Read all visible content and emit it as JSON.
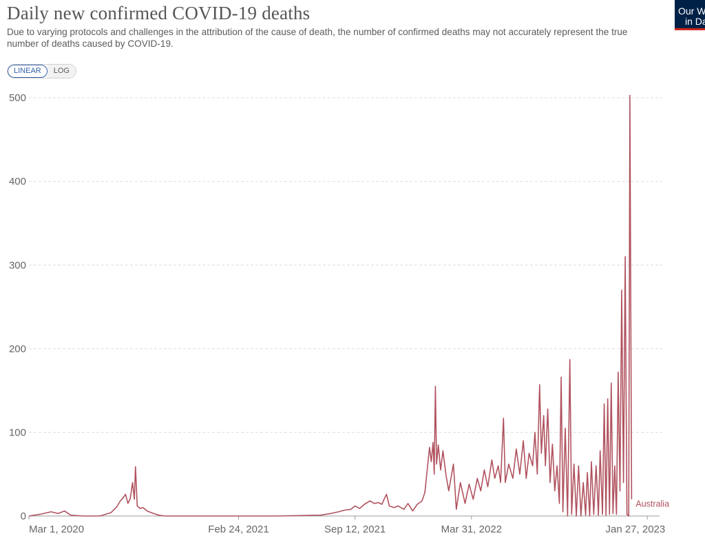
{
  "header": {
    "title": "Daily new confirmed COVID-19 deaths",
    "subtitle": "Due to varying protocols and challenges in the attribution of the cause of death, the number of confirmed deaths may not accurately represent the true number of deaths caused by COVID-19.",
    "logo_line1": "Our World",
    "logo_line2": "in Data"
  },
  "controls": {
    "linear_label": "LINEAR",
    "log_label": "LOG",
    "selected": "LINEAR"
  },
  "colors": {
    "series": "#b0525e",
    "grid": "#dddddd",
    "axis_text": "#666666",
    "logo_bg": "#002147",
    "logo_bar": "#ce261e",
    "accent": "#3360a9"
  },
  "chart_data": {
    "type": "line",
    "title": "Daily new confirmed COVID-19 deaths",
    "xlabel": "",
    "ylabel": "",
    "x_ticks": [
      "Mar 1, 2020",
      "Feb 24, 2021",
      "Sep 12, 2021",
      "Mar 31, 2022",
      "Jan 27, 2023"
    ],
    "y_ticks": [
      0,
      100,
      200,
      300,
      400,
      500
    ],
    "xlim": [
      "2020-03-01",
      "2023-02-17"
    ],
    "ylim": [
      0,
      510
    ],
    "grid": true,
    "series": [
      {
        "name": "Australia",
        "points": [
          [
            "2020-03-01",
            0
          ],
          [
            "2020-03-20",
            2
          ],
          [
            "2020-04-08",
            5
          ],
          [
            "2020-04-20",
            3
          ],
          [
            "2020-05-01",
            6
          ],
          [
            "2020-05-12",
            1
          ],
          [
            "2020-06-01",
            0
          ],
          [
            "2020-07-01",
            0
          ],
          [
            "2020-07-20",
            4
          ],
          [
            "2020-07-30",
            11
          ],
          [
            "2020-08-05",
            18
          ],
          [
            "2020-08-10",
            22
          ],
          [
            "2020-08-14",
            26
          ],
          [
            "2020-08-18",
            15
          ],
          [
            "2020-08-22",
            21
          ],
          [
            "2020-08-26",
            40
          ],
          [
            "2020-08-29",
            20
          ],
          [
            "2020-08-31",
            59
          ],
          [
            "2020-09-03",
            12
          ],
          [
            "2020-09-08",
            9
          ],
          [
            "2020-09-13",
            10
          ],
          [
            "2020-09-20",
            6
          ],
          [
            "2020-10-01",
            3
          ],
          [
            "2020-10-10",
            1
          ],
          [
            "2020-10-20",
            0
          ],
          [
            "2021-01-01",
            0
          ],
          [
            "2021-05-01",
            0
          ],
          [
            "2021-07-15",
            1
          ],
          [
            "2021-08-01",
            3
          ],
          [
            "2021-08-15",
            5
          ],
          [
            "2021-08-25",
            7
          ],
          [
            "2021-09-05",
            8
          ],
          [
            "2021-09-12",
            12
          ],
          [
            "2021-09-20",
            9
          ],
          [
            "2021-09-28",
            14
          ],
          [
            "2021-10-08",
            18
          ],
          [
            "2021-10-15",
            15
          ],
          [
            "2021-10-22",
            16
          ],
          [
            "2021-10-28",
            14
          ],
          [
            "2021-11-05",
            26
          ],
          [
            "2021-11-10",
            12
          ],
          [
            "2021-11-18",
            10
          ],
          [
            "2021-11-25",
            12
          ],
          [
            "2021-12-05",
            8
          ],
          [
            "2021-12-12",
            15
          ],
          [
            "2021-12-20",
            6
          ],
          [
            "2021-12-28",
            14
          ],
          [
            "2022-01-05",
            18
          ],
          [
            "2022-01-10",
            28
          ],
          [
            "2022-01-14",
            55
          ],
          [
            "2022-01-18",
            82
          ],
          [
            "2022-01-21",
            65
          ],
          [
            "2022-01-24",
            88
          ],
          [
            "2022-01-26",
            50
          ],
          [
            "2022-01-28",
            155
          ],
          [
            "2022-01-30",
            62
          ],
          [
            "2022-02-02",
            85
          ],
          [
            "2022-02-06",
            55
          ],
          [
            "2022-02-10",
            78
          ],
          [
            "2022-02-15",
            50
          ],
          [
            "2022-02-20",
            30
          ],
          [
            "2022-02-28",
            62
          ],
          [
            "2022-03-05",
            8
          ],
          [
            "2022-03-12",
            40
          ],
          [
            "2022-03-20",
            15
          ],
          [
            "2022-03-27",
            38
          ],
          [
            "2022-04-03",
            20
          ],
          [
            "2022-04-10",
            45
          ],
          [
            "2022-04-16",
            30
          ],
          [
            "2022-04-22",
            55
          ],
          [
            "2022-04-28",
            35
          ],
          [
            "2022-05-05",
            67
          ],
          [
            "2022-05-10",
            45
          ],
          [
            "2022-05-16",
            60
          ],
          [
            "2022-05-20",
            40
          ],
          [
            "2022-05-25",
            117
          ],
          [
            "2022-05-28",
            40
          ],
          [
            "2022-06-03",
            62
          ],
          [
            "2022-06-10",
            45
          ],
          [
            "2022-06-16",
            80
          ],
          [
            "2022-06-22",
            50
          ],
          [
            "2022-06-28",
            90
          ],
          [
            "2022-07-03",
            45
          ],
          [
            "2022-07-08",
            75
          ],
          [
            "2022-07-14",
            60
          ],
          [
            "2022-07-18",
            100
          ],
          [
            "2022-07-22",
            50
          ],
          [
            "2022-07-26",
            157
          ],
          [
            "2022-07-29",
            75
          ],
          [
            "2022-08-02",
            120
          ],
          [
            "2022-08-05",
            60
          ],
          [
            "2022-08-09",
            128
          ],
          [
            "2022-08-13",
            40
          ],
          [
            "2022-08-17",
            86
          ],
          [
            "2022-08-21",
            30
          ],
          [
            "2022-08-25",
            60
          ],
          [
            "2022-08-29",
            15
          ],
          [
            "2022-09-01",
            166
          ],
          [
            "2022-09-04",
            5
          ],
          [
            "2022-09-08",
            105
          ],
          [
            "2022-09-12",
            0
          ],
          [
            "2022-09-16",
            187
          ],
          [
            "2022-09-19",
            2
          ],
          [
            "2022-09-23",
            62
          ],
          [
            "2022-09-27",
            0
          ],
          [
            "2022-10-01",
            60
          ],
          [
            "2022-10-05",
            0
          ],
          [
            "2022-10-09",
            40
          ],
          [
            "2022-10-13",
            1
          ],
          [
            "2022-10-16",
            52
          ],
          [
            "2022-10-20",
            0
          ],
          [
            "2022-10-23",
            65
          ],
          [
            "2022-10-27",
            2
          ],
          [
            "2022-10-31",
            60
          ],
          [
            "2022-11-04",
            1
          ],
          [
            "2022-11-07",
            78
          ],
          [
            "2022-11-11",
            2
          ],
          [
            "2022-11-14",
            134
          ],
          [
            "2022-11-17",
            1
          ],
          [
            "2022-11-20",
            140
          ],
          [
            "2022-11-23",
            2
          ],
          [
            "2022-11-26",
            159
          ],
          [
            "2022-11-29",
            3
          ],
          [
            "2022-12-02",
            60
          ],
          [
            "2022-12-05",
            2
          ],
          [
            "2022-12-08",
            172
          ],
          [
            "2022-12-11",
            30
          ],
          [
            "2022-12-14",
            270
          ],
          [
            "2022-12-17",
            40
          ],
          [
            "2022-12-20",
            310
          ],
          [
            "2022-12-23",
            2
          ],
          [
            "2022-12-26",
            0
          ],
          [
            "2022-12-28",
            503
          ],
          [
            "2022-12-31",
            20
          ]
        ]
      }
    ]
  }
}
